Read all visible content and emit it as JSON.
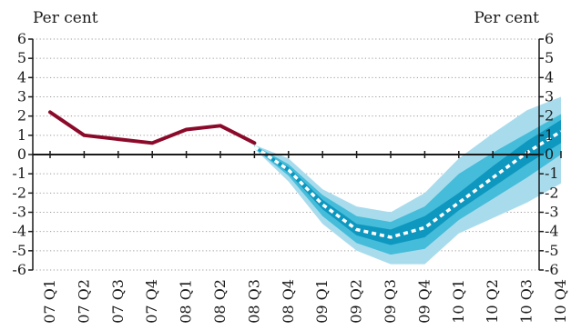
{
  "chart_data": {
    "type": "line",
    "title": "",
    "ylabel_left": "Per cent",
    "ylabel_right": "Per cent",
    "ylim": [
      -6,
      6
    ],
    "yticks": [
      6,
      5,
      4,
      3,
      2,
      1,
      0,
      -1,
      -2,
      -3,
      -4,
      -5,
      -6
    ],
    "ytick_labels": [
      "6",
      "5",
      "4",
      "3",
      "2",
      "1",
      "0",
      "-1",
      "-2",
      "-3",
      "-4",
      "-5",
      "-6"
    ],
    "categories": [
      "07 Q1",
      "07 Q2",
      "07 Q3",
      "07 Q4",
      "08 Q1",
      "08 Q2",
      "08 Q3",
      "08 Q4",
      "09 Q1",
      "09 Q2",
      "09 Q3",
      "09 Q4",
      "10 Q1",
      "10 Q2",
      "10 Q3",
      "10 Q4"
    ],
    "grid": "horizontal dotted",
    "outturn": {
      "x": [
        "07 Q1",
        "07 Q2",
        "07 Q3",
        "07 Q4",
        "08 Q1",
        "08 Q2",
        "08 Q3"
      ],
      "values": [
        2.2,
        1.0,
        0.8,
        0.6,
        1.3,
        1.5,
        0.6
      ]
    },
    "projection": {
      "x": [
        "08 Q3",
        "08 Q4",
        "09 Q1",
        "09 Q2",
        "09 Q3",
        "09 Q4",
        "10 Q1",
        "10 Q2",
        "10 Q3",
        "10 Q4"
      ],
      "central": [
        0.4,
        -0.8,
        -2.6,
        -3.9,
        -4.3,
        -3.8,
        -2.5,
        -1.2,
        0.1,
        1.2
      ],
      "bands": [
        {
          "lower": [
            0.3,
            -1.4,
            -3.6,
            -5.0,
            -5.7,
            -5.7,
            -4.1,
            -3.3,
            -2.5,
            -1.5
          ],
          "upper": [
            0.5,
            -0.2,
            -1.8,
            -2.7,
            -3.0,
            -2.0,
            -0.2,
            1.1,
            2.3,
            3.0
          ]
        },
        {
          "lower": [
            0.32,
            -1.1,
            -3.2,
            -4.6,
            -5.2,
            -4.9,
            -3.4,
            -2.3,
            -1.2,
            0.0
          ],
          "upper": [
            0.48,
            -0.5,
            -2.1,
            -3.2,
            -3.5,
            -2.7,
            -1.0,
            0.1,
            1.1,
            2.1
          ]
        },
        {
          "lower": [
            0.35,
            -0.95,
            -2.85,
            -4.2,
            -4.7,
            -4.3,
            -2.9,
            -1.7,
            -0.5,
            0.6
          ],
          "upper": [
            0.45,
            -0.65,
            -2.35,
            -3.6,
            -3.9,
            -3.2,
            -2.0,
            -0.6,
            0.7,
            1.8
          ]
        }
      ]
    },
    "colors": {
      "outturn": "#8b0a2a",
      "band_outer": "#a8dced",
      "band_mid": "#45bcd9",
      "band_inner": "#0e97bf",
      "central": "#ffffff",
      "axis": "#1a1a1a",
      "grid": "#9a9a9a"
    }
  }
}
